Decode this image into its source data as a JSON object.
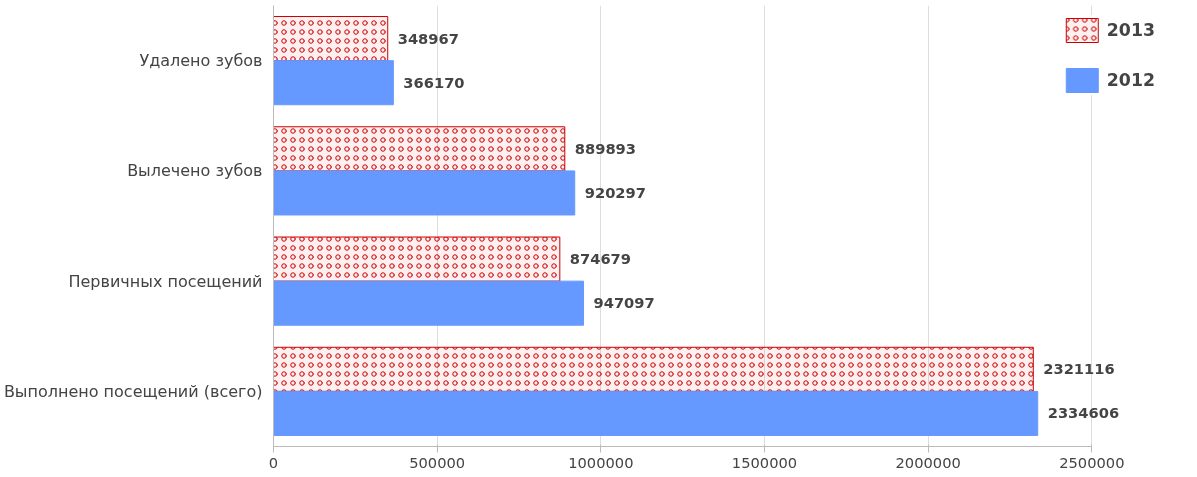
{
  "chart_data": {
    "type": "bar",
    "orientation": "horizontal",
    "categories": [
      "Удалено зубов",
      "Вылечено зубов",
      "Первичных посещений",
      "Выполнено посещений (всего)"
    ],
    "series": [
      {
        "name": "2013",
        "color": "#cc0000",
        "values": [
          348967,
          889893,
          874679,
          2321116
        ]
      },
      {
        "name": "2012",
        "color": "#6699ff",
        "values": [
          366170,
          920297,
          947097,
          2334606
        ]
      }
    ],
    "xlim": [
      0,
      2500000
    ],
    "xticks": [
      0,
      500000,
      1000000,
      1500000,
      2000000,
      2500000
    ],
    "grid": "x",
    "legend": "top right",
    "data_labels": true
  }
}
